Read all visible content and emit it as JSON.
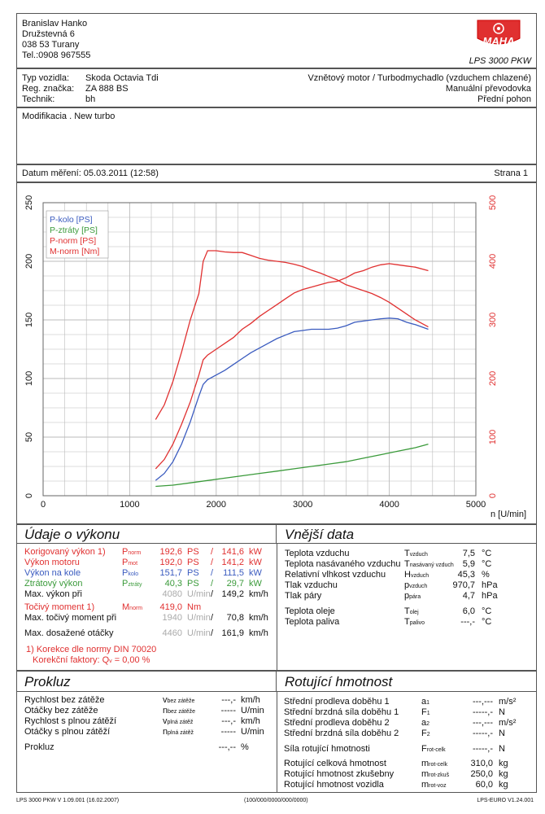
{
  "header": {
    "owner_lines": [
      "Branislav Hanko",
      "Družstevná 6",
      "038 53 Turany",
      "Tel.:0908 967555"
    ],
    "logo_text": "MAHA",
    "product": "LPS 3000 PKW"
  },
  "vehicle": {
    "labels": [
      "Typ vozidla:",
      "Reg. značka:",
      "Technik:"
    ],
    "values": [
      "Skoda Octavia Tdi",
      "ZA 888 BS",
      "bh"
    ],
    "right_lines": [
      "Vznětový motor / Turbodmychadlo (vzduchem chlazené)",
      "Manuální převodovka",
      "Přední pohon"
    ]
  },
  "modification": "Modifikacia . New turbo",
  "measurement": {
    "date": "Datum měření: 05.03.2011 (12:58)",
    "page": "Strana 1"
  },
  "chart_data": {
    "type": "line",
    "x_label": "n [U/min]",
    "xlim": [
      0,
      5000
    ],
    "x_ticks": [
      "0",
      "1000",
      "2000",
      "3000",
      "4000",
      "5000"
    ],
    "ylim_left": [
      0,
      250
    ],
    "y_ticks_left": [
      "0",
      "50",
      "100",
      "150",
      "200",
      "250"
    ],
    "ylim_right": [
      0,
      500
    ],
    "y_ticks_right": [
      "0",
      "100",
      "200",
      "300",
      "400",
      "500"
    ],
    "series": [
      {
        "name": "P-kolo [PS]",
        "color": "#3a5bbf",
        "axis": "left",
        "x": [
          1300,
          1400,
          1500,
          1600,
          1700,
          1800,
          1850,
          1900,
          2000,
          2100,
          2200,
          2300,
          2400,
          2500,
          2600,
          2700,
          2800,
          2900,
          3000,
          3100,
          3200,
          3300,
          3400,
          3500,
          3600,
          3700,
          3800,
          3900,
          4000,
          4100,
          4200,
          4300,
          4450
        ],
        "y": [
          13,
          19,
          29,
          44,
          63,
          85,
          95,
          99,
          103,
          107,
          112,
          117,
          122,
          126,
          130,
          134,
          137,
          140,
          141,
          142,
          142,
          142,
          143,
          145,
          148,
          149,
          150,
          151,
          151.5,
          151,
          148,
          146,
          142
        ]
      },
      {
        "name": "P-ztráty [PS]",
        "color": "#3a9a3a",
        "axis": "left",
        "x": [
          1300,
          1500,
          1700,
          1900,
          2100,
          2300,
          2500,
          2700,
          2900,
          3100,
          3300,
          3500,
          3700,
          3900,
          4100,
          4300,
          4450
        ],
        "y": [
          8,
          9,
          11,
          13,
          15,
          17,
          19,
          21,
          23,
          25,
          27,
          29,
          32,
          35,
          38,
          41,
          44
        ]
      },
      {
        "name": "P-norm [PS]",
        "color": "#e03030",
        "axis": "left",
        "x": [
          1300,
          1400,
          1500,
          1600,
          1700,
          1800,
          1850,
          1900,
          2000,
          2100,
          2200,
          2300,
          2400,
          2500,
          2600,
          2700,
          2800,
          2900,
          3000,
          3100,
          3200,
          3300,
          3400,
          3500,
          3600,
          3700,
          3800,
          3900,
          4000,
          4100,
          4200,
          4300,
          4450
        ],
        "y": [
          23,
          31,
          44,
          61,
          80,
          103,
          116,
          120,
          125,
          130,
          135,
          142,
          147,
          153,
          158,
          163,
          168,
          173,
          176,
          178,
          180,
          182,
          183,
          186,
          190,
          192,
          195,
          197,
          198,
          197,
          196,
          195,
          192
        ]
      },
      {
        "name": "M-norm [Nm]",
        "color": "#e03030",
        "axis": "right",
        "x": [
          1300,
          1400,
          1500,
          1600,
          1700,
          1800,
          1850,
          1900,
          2000,
          2100,
          2200,
          2300,
          2400,
          2500,
          2600,
          2700,
          2800,
          2900,
          3000,
          3100,
          3200,
          3300,
          3400,
          3500,
          3600,
          3700,
          3800,
          3900,
          4000,
          4100,
          4200,
          4300,
          4450
        ],
        "y": [
          130,
          155,
          195,
          245,
          300,
          345,
          400,
          418,
          418,
          416,
          415,
          415,
          410,
          405,
          402,
          400,
          398,
          395,
          391,
          385,
          380,
          374,
          368,
          360,
          355,
          350,
          345,
          338,
          330,
          320,
          310,
          300,
          288
        ]
      }
    ]
  },
  "performance": {
    "title": "Údaje o výkonu",
    "rows": [
      {
        "label": "Korigovaný výkon",
        "sup": "1)",
        "sym": "P",
        "symsub": "norm",
        "v1": "192,6",
        "u1": "PS",
        "v2": "141,6",
        "u2": "kW"
      },
      {
        "label": "Výkon motoru",
        "sup": "",
        "sym": "P",
        "symsub": "mot",
        "v1": "192,0",
        "u1": "PS",
        "v2": "141,2",
        "u2": "kW"
      },
      {
        "label": "Výkon na kole",
        "sup": "",
        "sym": "P",
        "symsub": "kolo",
        "v1": "151,7",
        "u1": "PS",
        "v2": "111,5",
        "u2": "kW"
      },
      {
        "label": "Ztrátový výkon",
        "sup": "",
        "sym": "P",
        "symsub": "ztráty",
        "v1": "40,3",
        "u1": "PS",
        "v2": "29,7",
        "u2": "kW"
      }
    ],
    "max_power_label": "Max. výkon při",
    "max_power_rpm": "4080",
    "max_power_rpm_unit": "U/min",
    "max_power_speed": "149,2",
    "speed_unit": "km/h",
    "torque_label": "Točivý moment",
    "torque_sup": "1)",
    "torque_sym": "M",
    "torque_symsub": "norm",
    "torque_value": "419,0",
    "torque_unit": "Nm",
    "max_torque_label": "Max. točivý moment při",
    "max_torque_rpm": "1940",
    "max_torque_speed": "70,8",
    "max_rpm_label": "Max. dosažené otáčky",
    "max_rpm": "4460",
    "max_rpm_speed": "161,9",
    "correction_line": "1) Korekce dle normy DIN 70020",
    "correction_factor": "Korekční faktory: Q",
    "correction_factor_sub": "v",
    "correction_value": "=   0,00 %"
  },
  "external": {
    "title": "Vnější data",
    "rows": [
      {
        "label": "Teplota vzduchu",
        "sym": "T",
        "sub": "vzduch",
        "value": "7,5",
        "unit": "°C"
      },
      {
        "label": "Teplota nasávaného vzduchu",
        "sym": "T",
        "sub": "nasávaný vzduch",
        "value": "5,9",
        "unit": "°C"
      },
      {
        "label": "Relativní vlhkost vzduchu",
        "sym": "H",
        "sub": "vzduch",
        "value": "45,3",
        "unit": "%"
      },
      {
        "label": "Tlak vzduchu",
        "sym": "p",
        "sub": "vzduch",
        "value": "970,7",
        "unit": "hPa"
      },
      {
        "label": "Tlak páry",
        "sym": "p",
        "sub": "pára",
        "value": "4,7",
        "unit": "hPa"
      },
      {
        "label": "Teplota oleje",
        "sym": "T",
        "sub": "olej",
        "value": "6,0",
        "unit": "°C"
      },
      {
        "label": "Teplota paliva",
        "sym": "T",
        "sub": "palivo",
        "value": "---,-",
        "unit": "°C"
      }
    ]
  },
  "proklouz": {
    "title": "Prokluz",
    "rows": [
      {
        "label": "Rychlost bez zátěže",
        "sym": "v",
        "sub": "bez zátěže",
        "value": "---,-",
        "unit": "km/h"
      },
      {
        "label": "Otáčky bez zátěže",
        "sym": "n",
        "sub": "bez zátěže",
        "value": "-----",
        "unit": "U/min"
      },
      {
        "label": "Rychlost s plnou zátěží",
        "sym": "v",
        "sub": "plná zátěž",
        "value": "---,-",
        "unit": "km/h"
      },
      {
        "label": "Otáčky s plnou zátěží",
        "sym": "n",
        "sub": "plná zátěž",
        "value": "-----",
        "unit": "U/min"
      },
      {
        "label": "Prokluz",
        "sym": "",
        "sub": "",
        "value": "---,--",
        "unit": "%"
      }
    ]
  },
  "rotating": {
    "title": "Rotující hmotnost",
    "rows": [
      {
        "label": "Střední prodleva doběhu 1",
        "sym": "a",
        "sub": "1",
        "value": "---,---",
        "unit": "m/s²"
      },
      {
        "label": "Střední brzdná síla doběhu 1",
        "sym": "F",
        "sub": "1",
        "value": "-----,-",
        "unit": "N"
      },
      {
        "label": "Střední prodleva doběhu 2",
        "sym": "a",
        "sub": "2",
        "value": "---,---",
        "unit": "m/s²"
      },
      {
        "label": "Střední brzdná síla doběhu 2",
        "sym": "F",
        "sub": "2",
        "value": "-----,-",
        "unit": "N"
      },
      {
        "label": "Síla rotující hmotnosti",
        "sym": "F",
        "sub": "rot-celk",
        "value": "-----,-",
        "unit": "N"
      },
      {
        "label": "Rotující celková hmotnost",
        "sym": "m",
        "sub": "rot-celk",
        "value": "310,0",
        "unit": "kg"
      },
      {
        "label": "Rotující hmotnost zkušebny",
        "sym": "m",
        "sub": "rot-zkuš",
        "value": "250,0",
        "unit": "kg"
      },
      {
        "label": "Rotující hmotnost vozidla",
        "sym": "m",
        "sub": "rot-voz",
        "value": "60,0",
        "unit": "kg"
      }
    ]
  },
  "footer": {
    "left": "LPS 3000 PKW V 1.09.001 (16.02.2007)",
    "center": "(100/000/0000/000/0000)",
    "right": "LPS-EURO V1.24.001"
  }
}
